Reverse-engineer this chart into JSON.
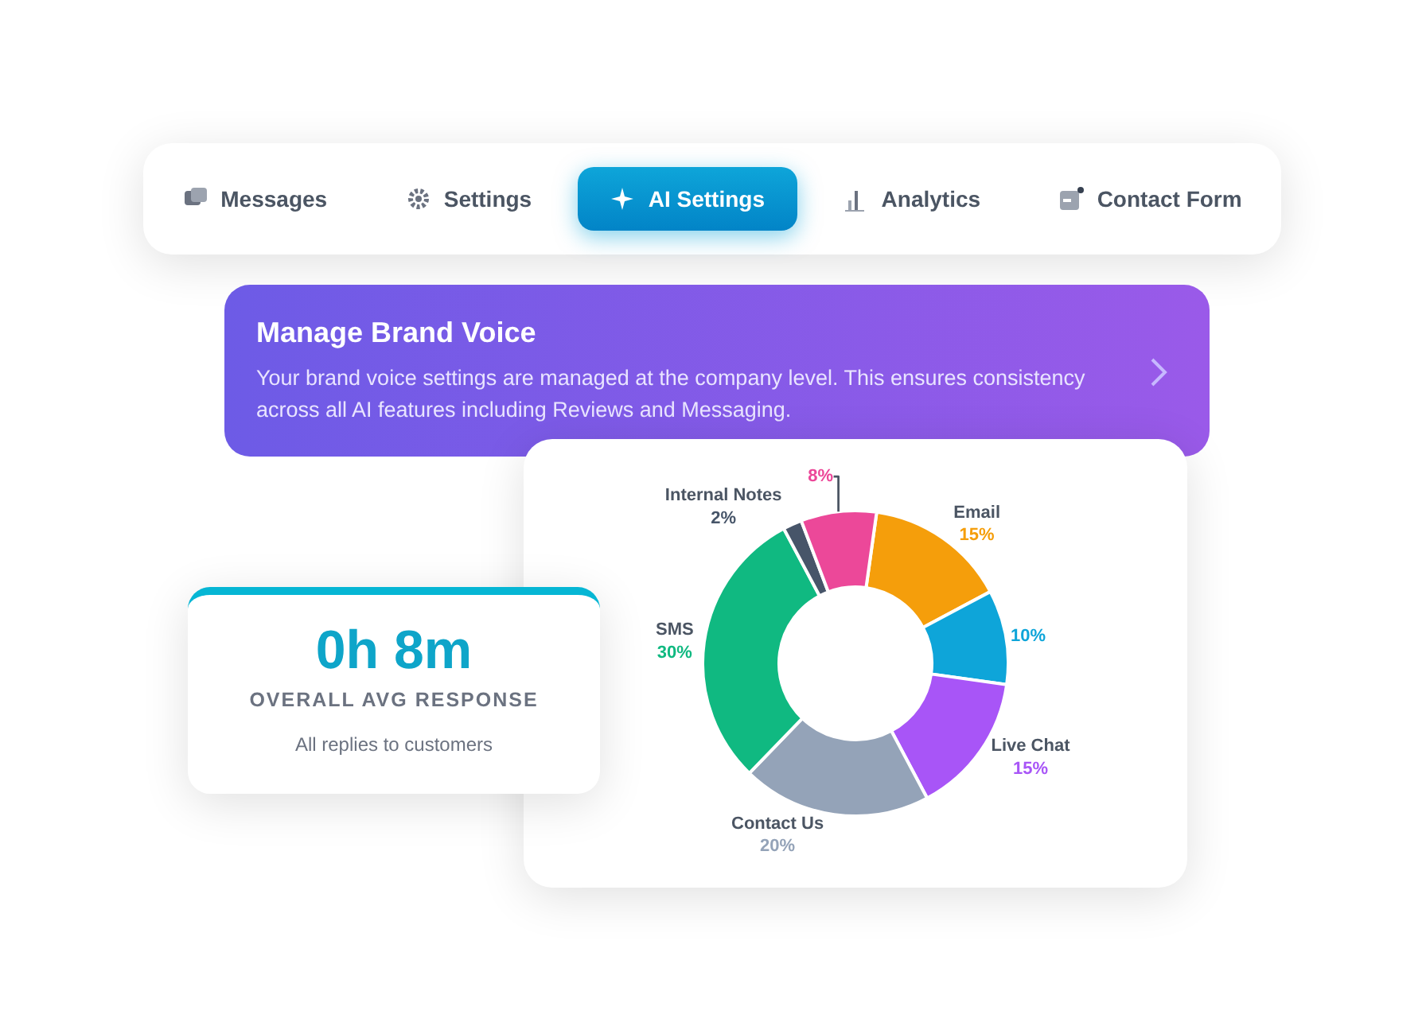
{
  "chart_data": [
    {
      "type": "other",
      "annotations": [
        "Messages",
        "Settings",
        "AI Settings",
        "Analytics",
        "Contact Form"
      ]
    },
    {
      "type": "other",
      "title": "Manage Brand Voice",
      "subtitle": "Your brand voice settings are managed at the company level. This ensures consistency across all AI features including Reviews and Messaging."
    },
    {
      "type": "other",
      "title": "0h 8m",
      "subtitle": "OVERALL AVG RESPONSE",
      "annotations": [
        "All replies to customers"
      ]
    },
    {
      "type": "donut",
      "categories": [
        "Email",
        null,
        "Live Chat",
        "Contact Us",
        "SMS",
        "Internal Notes",
        null
      ],
      "values": [
        15,
        10,
        15,
        20,
        30,
        2,
        8
      ],
      "value_labels": [
        "15%",
        "10%",
        "15%",
        "20%",
        "30%",
        "2%",
        "8%"
      ],
      "colors": [
        "#f59e0b",
        "#0ea5d9",
        "#a855f7",
        "#94a3b8",
        "#10b981",
        "#475569",
        "#ec4899"
      ]
    }
  ]
}
